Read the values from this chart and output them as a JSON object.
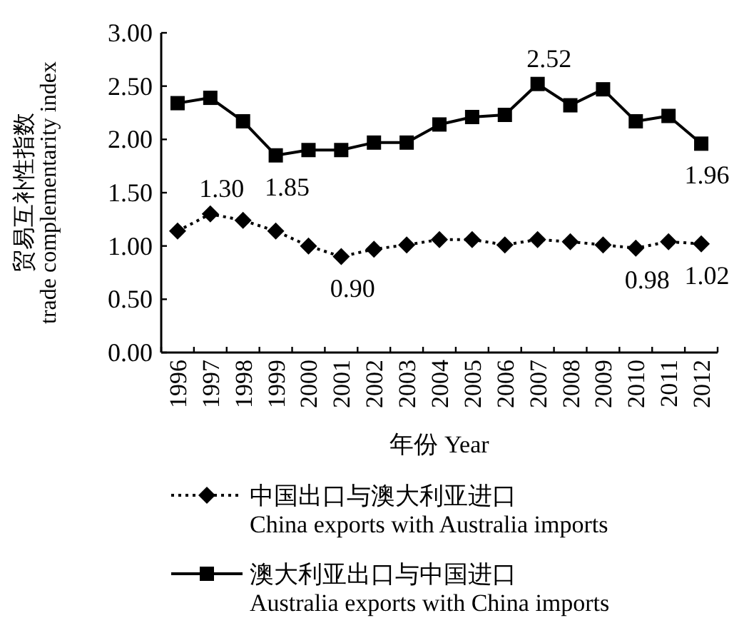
{
  "chart_data": {
    "type": "line",
    "xlabel": "年份 Year",
    "ylabel": "贸易互补性指数\ntrade complementarity index",
    "categories": [
      "1996",
      "1997",
      "1998",
      "1999",
      "2000",
      "2001",
      "2002",
      "2003",
      "2004",
      "2005",
      "2006",
      "2007",
      "2008",
      "2009",
      "2010",
      "2011",
      "2012"
    ],
    "series": [
      {
        "name": "中国出口与澳大利亚进口\nChina exports with Australia imports",
        "color": "#000000",
        "marker": "diamond",
        "line_style": "dotted",
        "values": [
          1.14,
          1.3,
          1.24,
          1.14,
          1.0,
          0.9,
          0.97,
          1.01,
          1.06,
          1.06,
          1.01,
          1.06,
          1.04,
          1.01,
          0.98,
          1.04,
          1.02
        ]
      },
      {
        "name": "澳大利亚出口与中国进口\nAustralia exports with China imports",
        "color": "#000000",
        "marker": "square",
        "line_style": "solid",
        "values": [
          2.34,
          2.39,
          2.17,
          1.85,
          1.9,
          1.9,
          1.97,
          1.97,
          2.14,
          2.21,
          2.23,
          2.52,
          2.32,
          2.47,
          2.17,
          2.22,
          1.96
        ]
      }
    ],
    "annotations": [
      {
        "text": "1.30",
        "x": "1997",
        "y": 1.3
      },
      {
        "text": "0.90",
        "x": "2001",
        "y": 0.9
      },
      {
        "text": "0.98",
        "x": "2010",
        "y": 0.98
      },
      {
        "text": "1.02",
        "x": "2012",
        "y": 1.02
      },
      {
        "text": "1.85",
        "x": "1999",
        "y": 1.85
      },
      {
        "text": "2.52",
        "x": "2007",
        "y": 2.52
      },
      {
        "text": "1.96",
        "x": "2012",
        "y": 1.96
      }
    ],
    "ylim": [
      0,
      3
    ],
    "yticks": [
      {
        "value": 0,
        "label": "0.00"
      },
      {
        "value": 0.5,
        "label": "0.50"
      },
      {
        "value": 1,
        "label": "1.00"
      },
      {
        "value": 1.5,
        "label": "1.50"
      },
      {
        "value": 2,
        "label": "2.00"
      },
      {
        "value": 2.5,
        "label": "2.50"
      },
      {
        "value": 3,
        "label": "3.00"
      }
    ],
    "grid": false,
    "legend": "bottom"
  }
}
